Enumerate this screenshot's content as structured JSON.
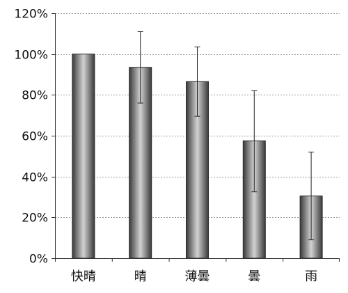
{
  "chart_data": {
    "type": "bar",
    "title": "",
    "xlabel": "",
    "ylabel": "",
    "categories": [
      "快晴",
      "晴",
      "薄曇",
      "曇",
      "雨"
    ],
    "values": [
      100,
      93.5,
      86.5,
      57.5,
      30.5
    ],
    "error_low": [
      100,
      76,
      69.5,
      32.5,
      9
    ],
    "error_high": [
      100,
      111,
      103.5,
      82,
      52
    ],
    "ylim": [
      0,
      120
    ],
    "yticks": [
      0,
      20,
      40,
      60,
      80,
      100,
      120
    ],
    "ytick_labels": [
      "0%",
      "20%",
      "40%",
      "60%",
      "80%",
      "100%",
      "120%"
    ],
    "grid": true,
    "legend": "none",
    "colors": {
      "bar_dark": "#3a3a3a",
      "bar_light": "#d2d2d2",
      "grid": "#9a9a9a",
      "axis": "#333333"
    }
  }
}
